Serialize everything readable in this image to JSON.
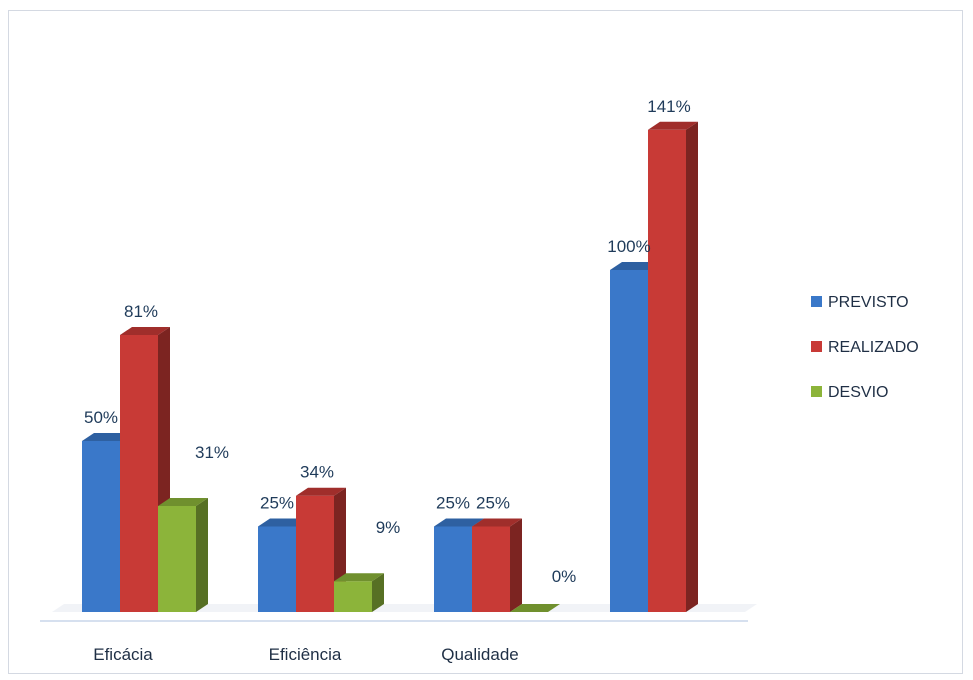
{
  "chart_data": {
    "type": "bar",
    "categories": [
      "Eficácia",
      "Eficiência",
      "Qualidade",
      ""
    ],
    "series": [
      {
        "name": "PREVISTO",
        "color": "#3a78c9",
        "values": [
          50,
          25,
          25,
          100
        ]
      },
      {
        "name": "REALIZADO",
        "color": "#c83a36",
        "values": [
          81,
          34,
          25,
          141
        ]
      },
      {
        "name": "DESVIO",
        "color": "#8cb43a",
        "values": [
          31,
          9,
          0,
          null
        ]
      }
    ],
    "data_labels": [
      [
        "50%",
        "25%",
        "25%",
        "100%"
      ],
      [
        "81%",
        "34%",
        "25%",
        "141%"
      ],
      [
        "31%",
        "9%",
        "0%",
        ""
      ]
    ],
    "ylim": [
      0,
      145
    ],
    "grid": false,
    "three_d": true,
    "legend_position": "right"
  }
}
